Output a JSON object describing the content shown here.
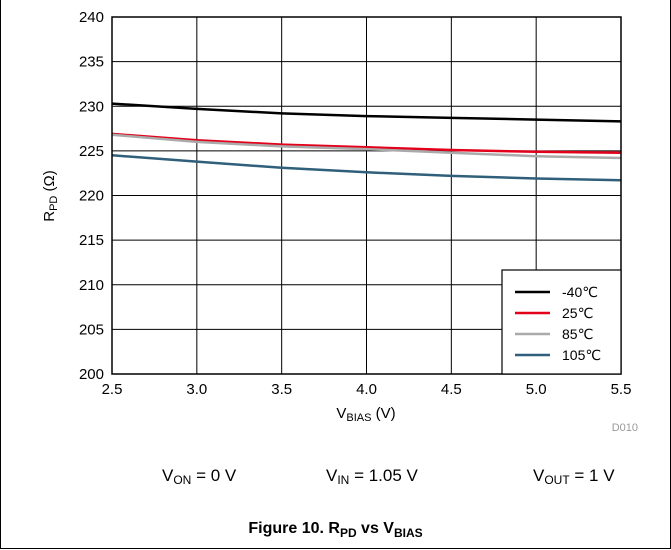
{
  "chart_data": {
    "type": "line",
    "ylabel_main": "R",
    "ylabel_sub": "PD",
    "ylabel_unit": "(Ω)",
    "xlabel_main": "V",
    "xlabel_sub": "BIAS",
    "xlabel_unit": "(V)",
    "xlim": [
      2.5,
      5.5
    ],
    "ylim": [
      200,
      240
    ],
    "x_ticks": [
      "2.5",
      "3.0",
      "3.5",
      "4.0",
      "4.5",
      "5.0",
      "5.5"
    ],
    "y_ticks": [
      "200",
      "205",
      "210",
      "215",
      "220",
      "225",
      "230",
      "235",
      "240"
    ],
    "grid": true,
    "legend_position": "bottom-right",
    "x": [
      2.5,
      3.0,
      3.5,
      4.0,
      4.5,
      5.0,
      5.5
    ],
    "series": [
      {
        "name": "-40℃",
        "color": "#000000",
        "values": [
          230.3,
          229.7,
          229.2,
          228.9,
          228.7,
          228.5,
          228.3
        ]
      },
      {
        "name": "25℃",
        "color": "#e3001b",
        "values": [
          226.9,
          226.2,
          225.7,
          225.4,
          225.1,
          224.9,
          224.8
        ]
      },
      {
        "name": "85℃",
        "color": "#aaaaaa",
        "values": [
          226.8,
          226.0,
          225.5,
          225.2,
          224.8,
          224.4,
          224.2
        ]
      },
      {
        "name": "105℃",
        "color": "#2f5f7a",
        "values": [
          224.5,
          223.8,
          223.1,
          222.6,
          222.2,
          221.9,
          221.7
        ]
      }
    ],
    "code_label": "D010"
  },
  "conditions": [
    {
      "main": "V",
      "sub": "ON",
      "rest": " = 0 V"
    },
    {
      "main": "V",
      "sub": "IN",
      "rest": " = 1.05 V"
    },
    {
      "main": "V",
      "sub": "OUT",
      "rest": " = 1 V"
    }
  ],
  "caption": {
    "prefix": "Figure 10. R",
    "sub1": "PD",
    "middle": " vs V",
    "sub2": "BIAS"
  }
}
